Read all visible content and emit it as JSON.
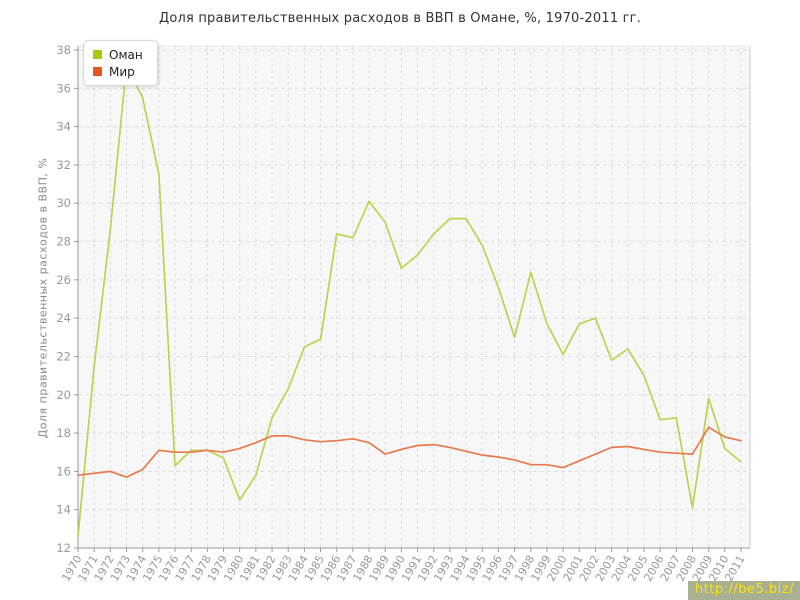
{
  "title": "Доля правительственных расходов в ВВП в Омане, %, 1970-2011 гг.",
  "y_axis_label": "Доля правительственных расходов в ВВП, %",
  "watermark": "http://be5.biz/",
  "watermark_colors": {
    "background": "#a7b093",
    "text": "#ffe300"
  },
  "chart_data": {
    "type": "line",
    "title": "Доля правительственных расходов в ВВП в Омане, %, 1970-2011 гг.",
    "xlabel": "",
    "ylabel": "Доля правительственных расходов в ВВП, %",
    "ylim": [
      12,
      38
    ],
    "y_tick_step": 2,
    "grid": true,
    "legend_position": "top-left",
    "categories": [
      1970,
      1971,
      1972,
      1973,
      1974,
      1975,
      1976,
      1977,
      1978,
      1979,
      1980,
      1981,
      1982,
      1983,
      1984,
      1985,
      1986,
      1987,
      1988,
      1989,
      1990,
      1991,
      1992,
      1993,
      1994,
      1995,
      1996,
      1997,
      1998,
      1999,
      2000,
      2001,
      2002,
      2003,
      2004,
      2005,
      2006,
      2007,
      2008,
      2009,
      2010,
      2011
    ],
    "series": [
      {
        "name": "Оман",
        "color": "#bed24f",
        "legend_color": "#a9c913",
        "values": [
          12.6,
          21.5,
          28.6,
          37.2,
          35.5,
          31.5,
          16.3,
          17.1,
          17.1,
          16.7,
          14.5,
          15.8,
          18.8,
          20.3,
          22.5,
          22.9,
          28.4,
          28.2,
          30.1,
          29.0,
          26.6,
          27.3,
          28.4,
          29.2,
          29.2,
          27.8,
          25.6,
          23.0,
          26.4,
          23.7,
          22.1,
          23.7,
          24.0,
          21.8,
          22.4,
          21.0,
          18.7,
          18.8,
          14.1,
          19.8,
          17.2,
          16.5
        ]
      },
      {
        "name": "Мир",
        "color": "#e57a4c",
        "legend_color": "#e2581f",
        "values": [
          15.8,
          15.9,
          16.0,
          15.7,
          16.1,
          17.1,
          17.0,
          17.0,
          17.1,
          17.0,
          17.2,
          17.5,
          17.85,
          17.85,
          17.65,
          17.55,
          17.6,
          17.7,
          17.5,
          16.9,
          17.15,
          17.35,
          17.4,
          17.25,
          17.05,
          16.85,
          16.75,
          16.6,
          16.35,
          16.35,
          16.2,
          16.55,
          16.9,
          17.25,
          17.3,
          17.15,
          17.0,
          16.95,
          16.9,
          18.3,
          17.8,
          17.6
        ]
      }
    ]
  }
}
